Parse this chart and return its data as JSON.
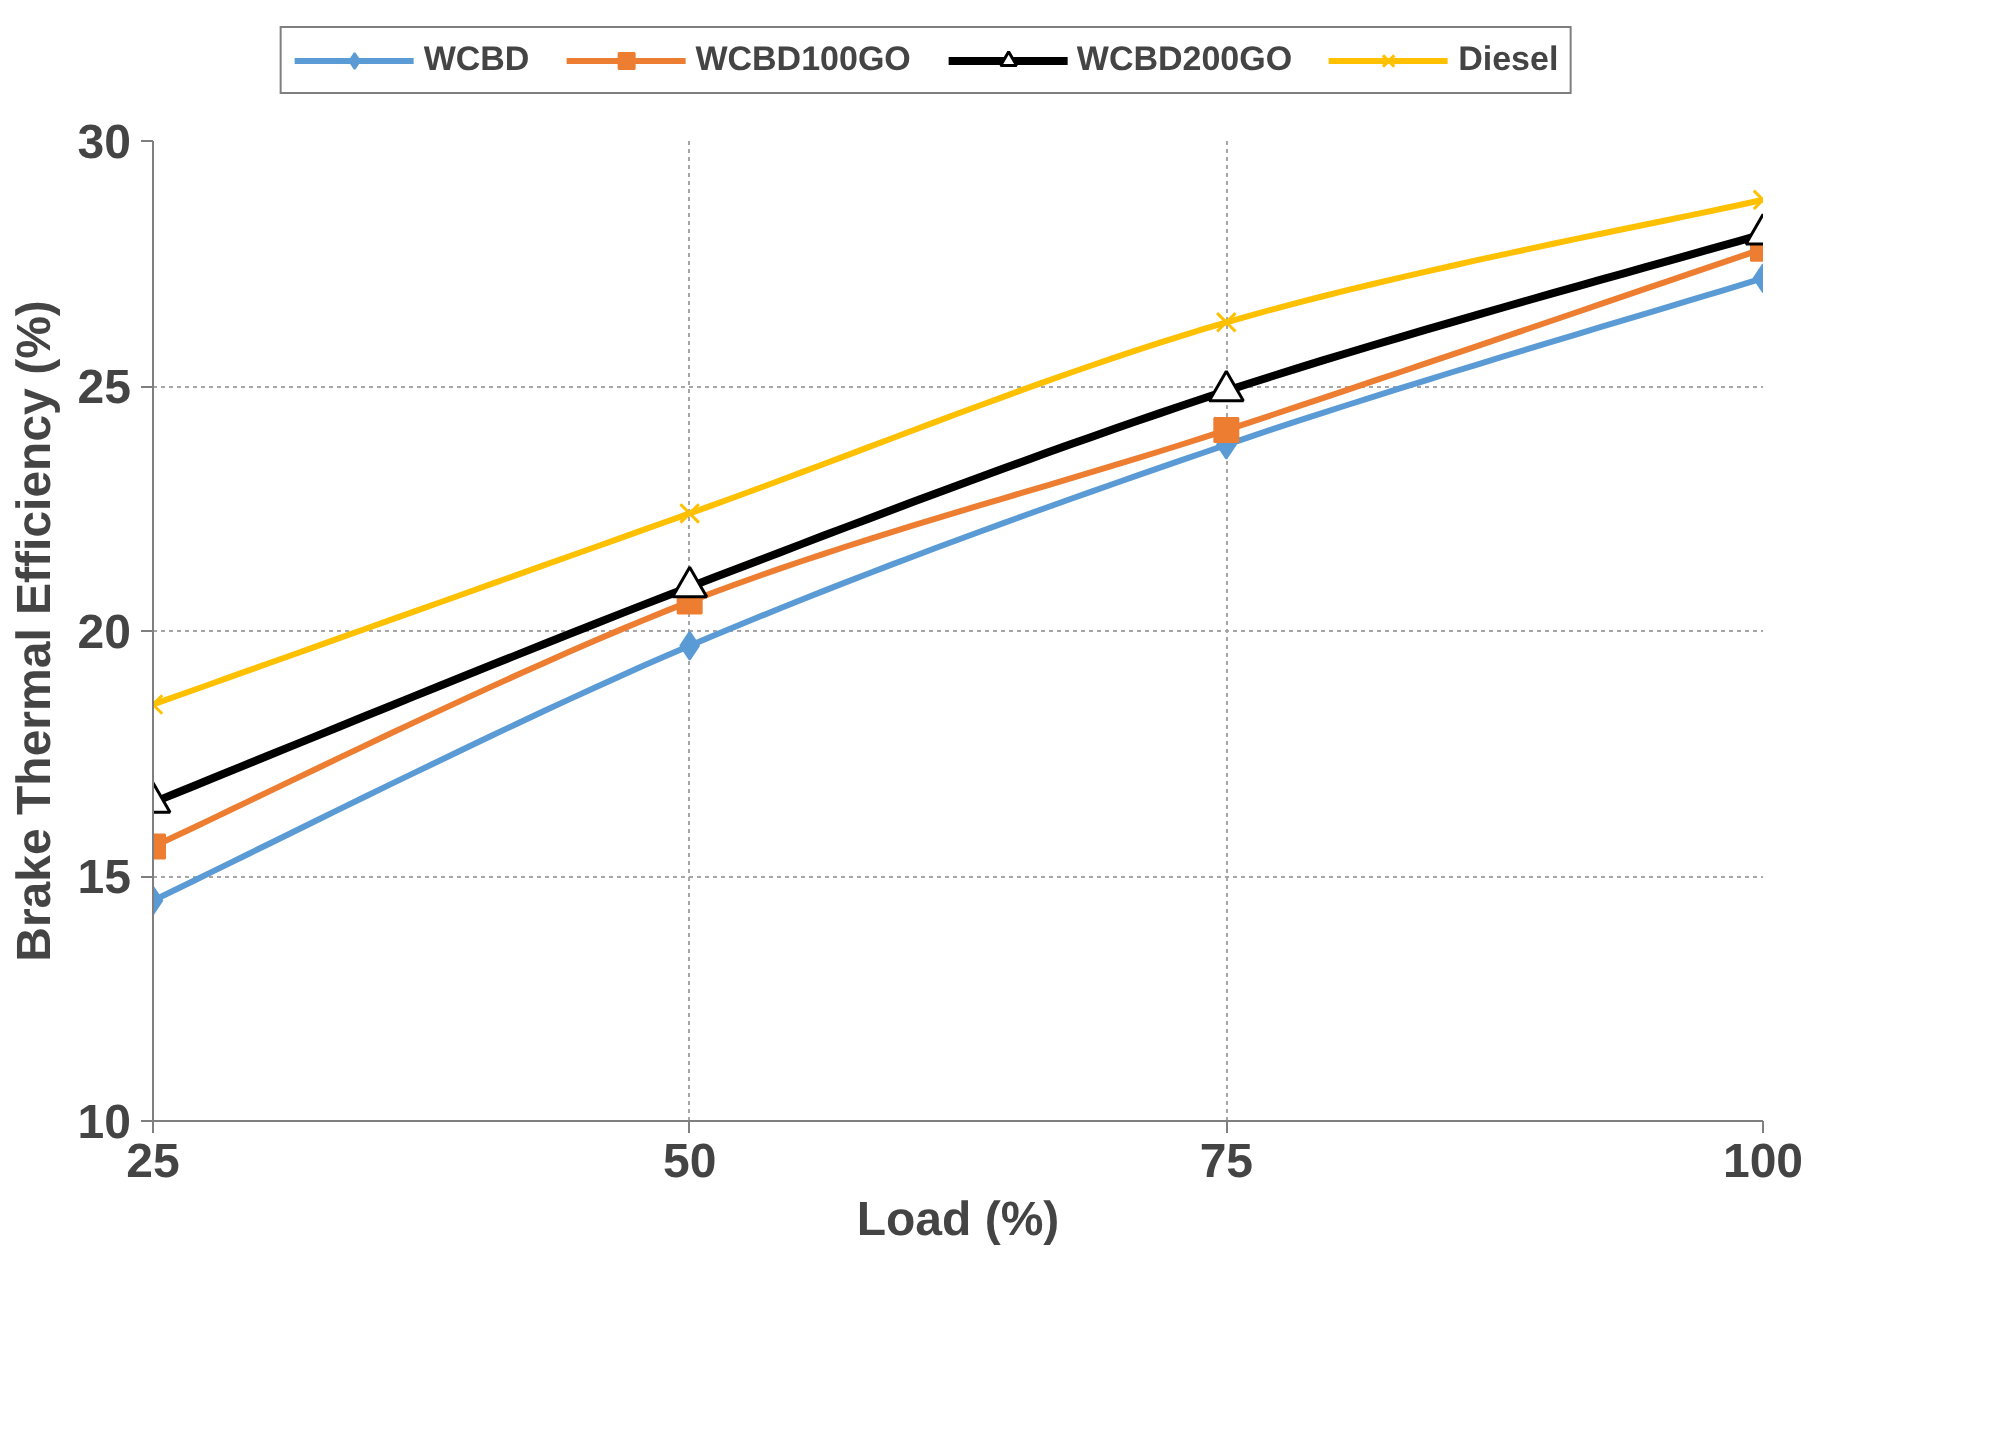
{
  "chart_data": {
    "type": "line",
    "xlabel": "Load (%)",
    "ylabel": "Brake Thermal Efficiency (%)",
    "x": [
      25,
      50,
      75,
      100
    ],
    "xlim": [
      25,
      100
    ],
    "xticks": [
      25,
      50,
      75,
      100
    ],
    "ylim": [
      10,
      30
    ],
    "yticks": [
      10,
      15,
      20,
      25,
      30
    ],
    "grid": true,
    "legend": "top",
    "line_style": "solid",
    "series": [
      {
        "name": "WCBD",
        "color": "#5b9bd5",
        "marker": "diamond",
        "values": [
          14.5,
          19.7,
          23.8,
          27.2
        ]
      },
      {
        "name": "WCBD100GO",
        "color": "#ed7d31",
        "marker": "square",
        "values": [
          15.6,
          20.6,
          24.1,
          27.8
        ]
      },
      {
        "name": "WCBD200GO",
        "color": "#000000",
        "marker": "triangle",
        "values": [
          16.5,
          20.9,
          24.9,
          28.1
        ]
      },
      {
        "name": "Diesel",
        "color": "#ffc000",
        "marker": "cross",
        "values": [
          18.5,
          22.4,
          26.3,
          28.8
        ]
      }
    ]
  }
}
